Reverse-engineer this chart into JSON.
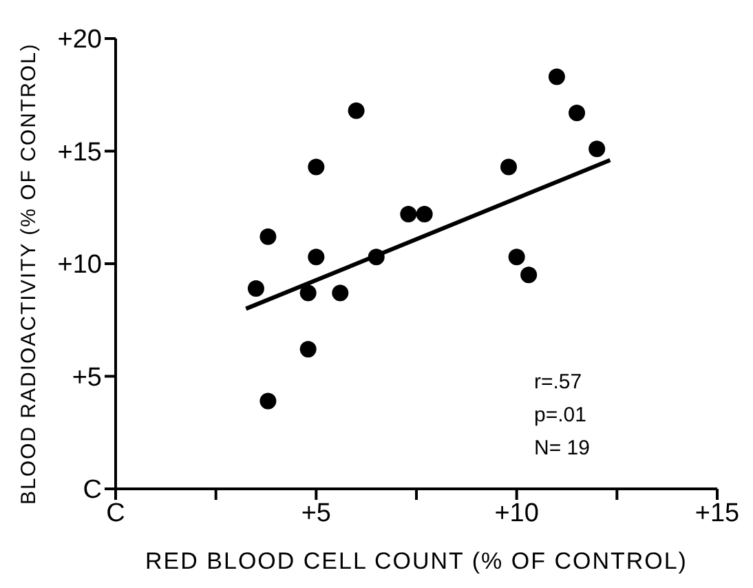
{
  "chart_data": {
    "type": "scatter",
    "xlabel": "RED BLOOD CELL COUNT (% OF CONTROL)",
    "ylabel": "BLOOD RADIOACTIVITY (% OF CONTROL)",
    "annotations": [
      "r=.57",
      "p=.01",
      "N= 19"
    ],
    "marker": "circle",
    "series": [
      {
        "type": "scatter",
        "color": "#000000",
        "x": [
          6.0,
          5.0,
          3.8,
          5.0,
          6.5,
          7.3,
          7.7,
          11.0,
          11.5,
          12.0,
          9.8,
          10.0,
          10.3,
          3.5,
          4.8,
          5.6,
          4.8,
          3.8
        ],
        "values": [
          16.8,
          14.3,
          11.2,
          10.3,
          10.3,
          12.2,
          12.2,
          18.3,
          16.7,
          15.1,
          14.3,
          10.3,
          9.5,
          8.9,
          8.7,
          8.7,
          6.2,
          3.9
        ]
      },
      {
        "type": "line",
        "color": "#000000",
        "marker": "none",
        "line_style": "solid",
        "x": [
          3.25,
          12.33
        ],
        "values": [
          8.0,
          14.6
        ]
      }
    ],
    "xlim": [
      0,
      15
    ],
    "xticks": [
      {
        "value": 0,
        "label": "C"
      },
      {
        "value": 2.5,
        "label": null
      },
      {
        "value": 5,
        "label": "+5"
      },
      {
        "value": 7.5,
        "label": null
      },
      {
        "value": 10,
        "label": "+10"
      },
      {
        "value": 12.5,
        "label": null
      },
      {
        "value": 15,
        "label": "+15"
      }
    ],
    "ylim": [
      0,
      20
    ],
    "yticks": [
      {
        "value": 0,
        "label": "C"
      },
      {
        "value": 5,
        "label": "+5"
      },
      {
        "value": 10,
        "label": "+10"
      },
      {
        "value": 15,
        "label": "+15"
      },
      {
        "value": 20,
        "label": "+20"
      }
    ],
    "grid": false,
    "legend": false
  }
}
